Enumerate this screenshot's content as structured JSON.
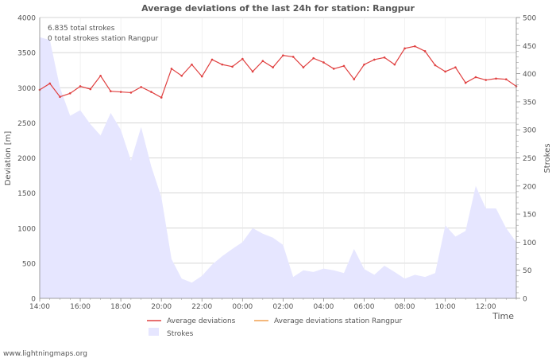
{
  "chart_data": {
    "type": "line",
    "title": "Average deviations of the last 24h for station: Rangpur",
    "annotations": [
      "6.835 total strokes",
      "0 total strokes station Rangpur"
    ],
    "xlabel": "Time",
    "ylabel_left": "Deviation  [m]",
    "ylabel_right": "Strokes",
    "xlim": [
      0,
      23.5
    ],
    "ylim_left": [
      0,
      4000
    ],
    "ylim_right": [
      0,
      500
    ],
    "x_ticks": [
      {
        "v": 0,
        "label": "14:00"
      },
      {
        "v": 2,
        "label": "16:00"
      },
      {
        "v": 4,
        "label": "18:00"
      },
      {
        "v": 6,
        "label": "20:00"
      },
      {
        "v": 8,
        "label": "22:00"
      },
      {
        "v": 10,
        "label": "00:00"
      },
      {
        "v": 12,
        "label": "02:00"
      },
      {
        "v": 14,
        "label": "04:00"
      },
      {
        "v": 16,
        "label": "06:00"
      },
      {
        "v": 18,
        "label": "08:00"
      },
      {
        "v": 20,
        "label": "10:00"
      },
      {
        "v": 22,
        "label": "12:00"
      }
    ],
    "y_ticks_left": [
      0,
      500,
      1000,
      1500,
      2000,
      2500,
      3000,
      3500,
      4000
    ],
    "y_ticks_right": [
      0,
      50,
      100,
      150,
      200,
      250,
      300,
      350,
      400,
      450,
      500
    ],
    "series": [
      {
        "name": "Strokes",
        "axis": "right",
        "kind": "area",
        "color": "#e6e6ff",
        "x": [
          0,
          0.5,
          1,
          1.5,
          2,
          2.5,
          3,
          3.5,
          4,
          4.5,
          5,
          5.5,
          6,
          6.5,
          7,
          7.5,
          8,
          8.5,
          9,
          9.5,
          10,
          10.5,
          11,
          11.5,
          12,
          12.5,
          13,
          13.5,
          14,
          14.5,
          15,
          15.5,
          16,
          16.5,
          17,
          17.5,
          18,
          18.5,
          19,
          19.5,
          20,
          20.5,
          21,
          21.5,
          22,
          22.5,
          23,
          23.5
        ],
        "values": [
          465,
          460,
          375,
          325,
          335,
          310,
          290,
          330,
          300,
          245,
          305,
          235,
          180,
          70,
          35,
          28,
          40,
          60,
          75,
          88,
          100,
          125,
          115,
          108,
          95,
          38,
          50,
          47,
          53,
          50,
          45,
          88,
          52,
          42,
          58,
          47,
          35,
          42,
          38,
          45,
          130,
          110,
          120,
          200,
          160,
          160,
          125,
          100
        ]
      },
      {
        "name": "Average deviations",
        "axis": "left",
        "kind": "line",
        "color": "#e04040",
        "x": [
          0,
          0.5,
          1,
          1.5,
          2,
          2.5,
          3,
          3.5,
          4,
          4.5,
          5,
          5.5,
          6,
          6.5,
          7,
          7.5,
          8,
          8.5,
          9,
          9.5,
          10,
          10.5,
          11,
          11.5,
          12,
          12.5,
          13,
          13.5,
          14,
          14.5,
          15,
          15.5,
          16,
          16.5,
          17,
          17.5,
          18,
          18.5,
          19,
          19.5,
          20,
          20.5,
          21,
          21.5,
          22,
          22.5,
          23,
          23.5
        ],
        "values": [
          2970,
          3060,
          2870,
          2920,
          3020,
          2980,
          3170,
          2950,
          2940,
          2930,
          3010,
          2940,
          2860,
          3270,
          3170,
          3330,
          3160,
          3400,
          3330,
          3300,
          3410,
          3230,
          3380,
          3290,
          3460,
          3440,
          3290,
          3420,
          3360,
          3270,
          3310,
          3120,
          3330,
          3400,
          3430,
          3330,
          3560,
          3590,
          3520,
          3320,
          3230,
          3290,
          3070,
          3150,
          3110,
          3130,
          3120,
          3020
        ]
      },
      {
        "name": "Average deviations station Rangpur",
        "axis": "left",
        "kind": "line",
        "color": "#f0a050",
        "x": [],
        "values": []
      }
    ],
    "legend": [
      "Average deviations",
      "Average deviations station Rangpur",
      "Strokes"
    ],
    "legend_position": "bottom",
    "grid": true
  },
  "footer": "www.lightningmaps.org"
}
